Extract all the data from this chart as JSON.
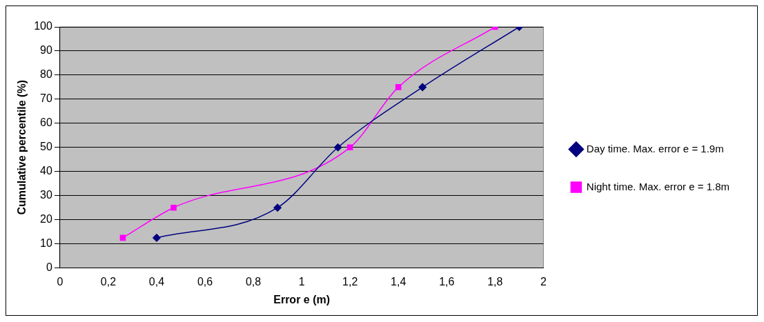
{
  "chart_data": {
    "type": "line",
    "xlabel": "Error e (m)",
    "ylabel": "Cumulative percentile (%)",
    "xlim": [
      0,
      2
    ],
    "xticks": [
      0,
      {
        "value": 0.2,
        "label": "0,2"
      },
      {
        "value": 0.4,
        "label": "0,4"
      },
      {
        "value": 0.6,
        "label": "0,6"
      },
      {
        "value": 0.8,
        "label": "0,8"
      },
      1,
      {
        "value": 1.2,
        "label": "1,2"
      },
      {
        "value": 1.4,
        "label": "1,4"
      },
      {
        "value": 1.6,
        "label": "1,6"
      },
      {
        "value": 1.8,
        "label": "1,8"
      },
      2
    ],
    "ylim": [
      0,
      100
    ],
    "yticks": [
      0,
      10,
      20,
      30,
      40,
      50,
      60,
      70,
      80,
      90,
      100
    ],
    "grid": "y",
    "legend": "right",
    "series": [
      {
        "name": "Day time. Max. error e = 1.9m",
        "color": "#000080",
        "marker": "diamond",
        "x": [
          0.4,
          0.9,
          1.15,
          1.5,
          1.9
        ],
        "values": [
          12.5,
          25,
          50,
          75,
          100
        ]
      },
      {
        "name": "Night time. Max. error e = 1.8m",
        "color": "#ff00ff",
        "marker": "square",
        "x": [
          0.26,
          0.47,
          1.2,
          1.4,
          1.8
        ],
        "values": [
          12.5,
          25,
          50,
          75,
          100
        ]
      }
    ]
  }
}
